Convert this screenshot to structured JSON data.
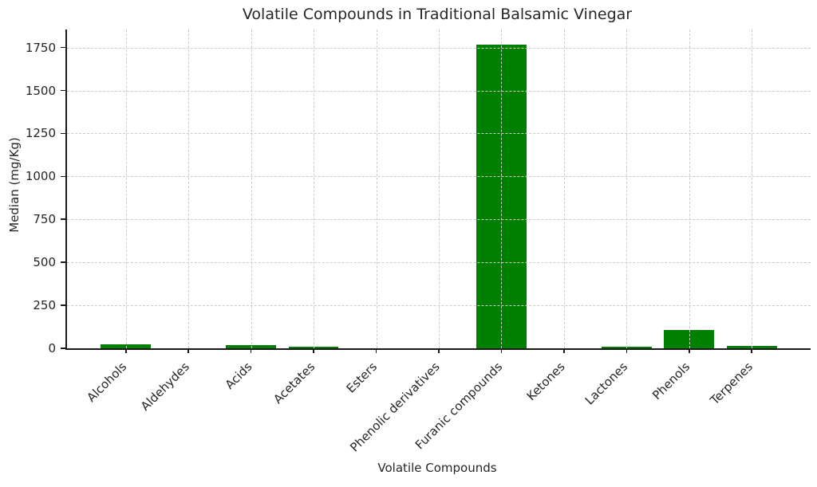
{
  "chart_data": {
    "type": "bar",
    "title": "Volatile Compounds in Traditional Balsamic Vinegar",
    "xlabel": "Volatile Compounds",
    "ylabel": "Median (mg/Kg)",
    "categories": [
      "Alcohols",
      "Aldehydes",
      "Acids",
      "Acetates",
      "Esters",
      "Phenolic derivatives",
      "Furanic compounds",
      "Ketones",
      "Lactones",
      "Phenols",
      "Terpenes"
    ],
    "values": [
      22,
      0,
      18,
      10,
      0,
      0,
      1767,
      0,
      8,
      105,
      12
    ],
    "yticks": [
      0,
      250,
      500,
      750,
      1000,
      1250,
      1500,
      1750
    ],
    "ylim": [
      0,
      1855
    ],
    "xlim": [
      -0.94,
      10.94
    ],
    "bar_width": 0.8,
    "bar_color": "#008000",
    "grid": "both, dashed, drawn above bars",
    "grid_color": "#cccccc",
    "axis_color": "#1a1a1a",
    "text_color": "#262626",
    "background": "#ffffff",
    "legend_position": "none"
  }
}
